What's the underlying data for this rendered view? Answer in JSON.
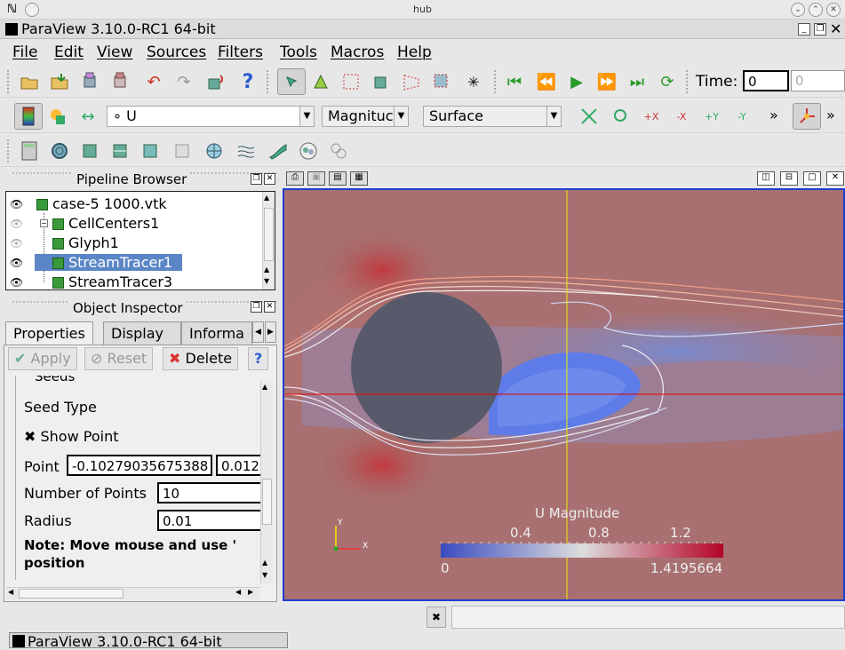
{
  "outer_window": {
    "title": "hub",
    "menu_glyph": "ℕ",
    "btn_down": "⌄",
    "btn_max": "⌃",
    "btn_close": "✕"
  },
  "app": {
    "title": "ParaView 3.10.0-RC1 64-bit",
    "btn_min": "_",
    "btn_restore": "❐",
    "btn_close": "✕"
  },
  "menu": [
    "File",
    "Edit",
    "View",
    "Sources",
    "Filters",
    "Tools",
    "Macros",
    "Help"
  ],
  "toolbar1": {
    "time_label": "Time:",
    "time_value": "0",
    "time_index": "0"
  },
  "toolbar2": {
    "color_by": "∘ U",
    "component": "Magnituc",
    "representation": "Surface",
    "more": "»"
  },
  "pipeline": {
    "title": "Pipeline Browser",
    "items": [
      {
        "label": "case-5 1000.vtk",
        "visible": true
      },
      {
        "label": "CellCenters1",
        "visible": false
      },
      {
        "label": "Glyph1",
        "visible": false
      },
      {
        "label": "StreamTracer1",
        "visible": true,
        "selected": true
      },
      {
        "label": "StreamTracer3",
        "visible": true
      }
    ]
  },
  "inspector": {
    "title": "Object Inspector",
    "tabs": [
      "Properties",
      "Display",
      "Informa"
    ],
    "apply": "Apply",
    "reset": "Reset",
    "delete": "Delete",
    "help": "?",
    "section": "Seeds",
    "seed_type_label": "Seed Type",
    "show_point_label": "✖ Show Point",
    "point_label": "Point",
    "point_x": "-0.10279035675388",
    "point_y": "0.012",
    "num_points_label": "Number of Points",
    "num_points": "10",
    "radius_label": "Radius",
    "radius": "0.01",
    "note_line1": "Note: Move mouse and use '",
    "note_line2": "position"
  },
  "colorbar": {
    "title": "U Magnitude",
    "ticks": [
      "0.4",
      "0.8",
      "1.2"
    ],
    "min": "0",
    "max": "1.4195664",
    "colors": {
      "low": "#3b4cc0",
      "mid": "#dddddd",
      "high": "#b40426"
    }
  },
  "axes": {
    "y": "Y",
    "x": "X"
  },
  "statusbar": {
    "text": "ParaView 3.10.0-RC1 64-bit"
  }
}
